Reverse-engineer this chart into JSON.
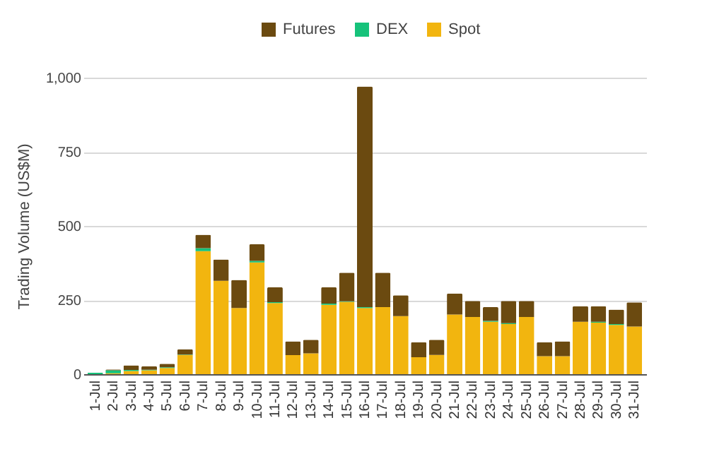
{
  "chart_data": {
    "type": "bar",
    "stacked": true,
    "ylabel": "Trading Volume (US$M)",
    "categories": [
      "1-Jul",
      "2-Jul",
      "3-Jul",
      "4-Jul",
      "5-Jul",
      "6-Jul",
      "7-Jul",
      "8-Jul",
      "9-Jul",
      "10-Jul",
      "11-Jul",
      "12-Jul",
      "13-Jul",
      "14-Jul",
      "15-Jul",
      "16-Jul",
      "17-Jul",
      "18-Jul",
      "19-Jul",
      "20-Jul",
      "21-Jul",
      "22-Jul",
      "23-Jul",
      "24-Jul",
      "25-Jul",
      "26-Jul",
      "27-Jul",
      "28-Jul",
      "29-Jul",
      "30-Jul",
      "31-Jul"
    ],
    "series": [
      {
        "name": "Spot",
        "color": "#f2b50f",
        "values": [
          null,
          3,
          11,
          13,
          21,
          65,
          415,
          315,
          223,
          377,
          240,
          64,
          70,
          234,
          244,
          223,
          226,
          196,
          57,
          65,
          201,
          193,
          177,
          169,
          193,
          61,
          61,
          177,
          174,
          166,
          161
        ]
      },
      {
        "name": "DEX",
        "color": "#16c27a",
        "values": [
          5,
          10,
          3,
          2,
          2,
          1,
          10,
          0,
          0,
          5,
          3,
          0,
          0,
          4,
          2,
          3,
          0,
          0,
          0,
          0,
          0,
          0,
          3,
          3,
          0,
          0,
          0,
          0,
          3,
          3,
          0
        ]
      },
      {
        "name": "Futures",
        "color": "#6b4a10",
        "values": [
          0,
          3,
          16,
          12,
          12,
          18,
          45,
          72,
          95,
          56,
          50,
          47,
          46,
          55,
          96,
          744,
          116,
          70,
          51,
          51,
          71,
          54,
          46,
          75,
          54,
          47,
          50,
          52,
          52,
          49,
          81
        ]
      }
    ],
    "ylim": [
      0,
      1000
    ],
    "yticks": [
      0,
      250,
      500,
      750,
      {
        "value": 1000,
        "label": "1,000"
      }
    ],
    "grid": "y",
    "legend": "top"
  }
}
